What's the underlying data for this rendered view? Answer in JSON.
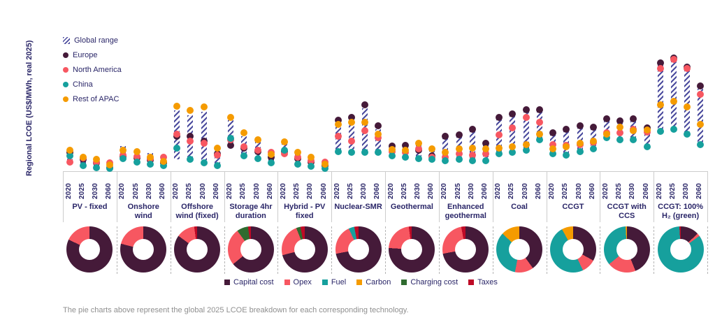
{
  "y_axis_title": "Regional LCOE (US$/MWh, real 2025)",
  "caption": "The pie charts above represent the global 2025 LCOE breakdown for each corresponding technology.",
  "legend": {
    "global_range_label": "Global range"
  },
  "colors": {
    "text_navy": "#2A2668",
    "hatch": "#4C4C9E",
    "grid": "#CCCCCC",
    "caption_gray": "#8F8F8F"
  },
  "cost_legend": [
    {
      "key": "capital",
      "label": "Capital cost",
      "color": "#451A39"
    },
    {
      "key": "opex",
      "label": "Opex",
      "color": "#F75761"
    },
    {
      "key": "fuel",
      "label": "Fuel",
      "color": "#16A09D"
    },
    {
      "key": "carbon",
      "label": "Carbon",
      "color": "#F59B00"
    },
    {
      "key": "charging",
      "label": "Charging cost",
      "color": "#2F6B2F"
    },
    {
      "key": "taxes",
      "label": "Taxes",
      "color": "#BE0A26"
    }
  ],
  "chart_data": {
    "type": "scatter",
    "ylabel": "Regional LCOE (US$/MWh, real 2025)",
    "ylim": [
      0,
      190
    ],
    "axis_note": "y axis unlabeled; values are relative units read from pixel positions",
    "x_years": [
      "2020",
      "2025",
      "2030",
      "2060"
    ],
    "regions": [
      {
        "key": "europe",
        "label": "Europe",
        "color": "#451A39"
      },
      {
        "key": "north_america",
        "label": "North America",
        "color": "#F75761"
      },
      {
        "key": "china",
        "label": "China",
        "color": "#16A09D"
      },
      {
        "key": "rest_of_apac",
        "label": "Rest of APAC",
        "color": "#F59B00"
      }
    ],
    "technologies": [
      {
        "label": "PV - fixed",
        "range": [
          [
            12,
            32
          ],
          [
            8,
            21
          ],
          [
            5,
            18
          ],
          [
            3,
            13
          ]
        ],
        "points": {
          "europe": [
            27,
            17,
            12,
            5
          ],
          "north_america": [
            13,
            19,
            13,
            12
          ],
          "china": [
            22,
            8,
            5,
            4
          ],
          "rest_of_apac": [
            30,
            20,
            17,
            9
          ]
        },
        "pie": [
          [
            "capital",
            82
          ],
          [
            "opex",
            18
          ]
        ]
      },
      {
        "label": "Onshore wind",
        "range": [
          [
            15,
            36
          ],
          [
            12,
            30
          ],
          [
            10,
            26
          ],
          [
            8,
            22
          ]
        ],
        "points": {
          "europe": [
            21,
            19,
            16,
            12
          ],
          "north_america": [
            23,
            21,
            18,
            20
          ],
          "china": [
            18,
            13,
            10,
            8
          ],
          "rest_of_apac": [
            30,
            28,
            20,
            14
          ]
        },
        "pie": [
          [
            "capital",
            79
          ],
          [
            "opex",
            21
          ]
        ]
      },
      {
        "label": "Offshore wind (fixed)",
        "range": [
          [
            17,
            87
          ],
          [
            17,
            80
          ],
          [
            12,
            85
          ],
          [
            8,
            28
          ]
        ],
        "points": {
          "europe": [
            50,
            50,
            43,
            25
          ],
          "north_america": [
            53,
            43,
            40,
            23
          ],
          "china": [
            33,
            17,
            12,
            8
          ],
          "rest_of_apac": [
            93,
            87,
            92,
            33
          ]
        },
        "pie": [
          [
            "capital",
            85
          ],
          [
            "opex",
            13
          ],
          [
            "taxes",
            2
          ]
        ]
      },
      {
        "label": "Storage 4hr duration",
        "range": [
          [
            37,
            73
          ],
          [
            22,
            50
          ],
          [
            18,
            42
          ],
          [
            12,
            25
          ]
        ],
        "points": {
          "europe": [
            37,
            33,
            28,
            20
          ],
          "north_america": [
            45,
            35,
            30,
            27
          ],
          "china": [
            47,
            22,
            18,
            12
          ],
          "rest_of_apac": [
            77,
            55,
            45,
            24
          ]
        },
        "pie": [
          [
            "capital",
            64
          ],
          [
            "opex",
            26
          ],
          [
            "charging",
            8
          ],
          [
            "taxes",
            2
          ]
        ]
      },
      {
        "label": "Hybrid - PV fixed",
        "range": [
          [
            25,
            40
          ],
          [
            10,
            25
          ],
          [
            7,
            20
          ],
          [
            4,
            12
          ]
        ],
        "points": {
          "europe": [
            28,
            18,
            13,
            8
          ],
          "north_america": [
            25,
            20,
            15,
            13
          ],
          "china": [
            30,
            10,
            7,
            4
          ],
          "rest_of_apac": [
            42,
            27,
            20,
            10
          ]
        },
        "pie": [
          [
            "capital",
            71
          ],
          [
            "opex",
            23
          ],
          [
            "charging",
            3
          ],
          [
            "taxes",
            3
          ]
        ]
      },
      {
        "label": "Nuclear-SMR",
        "range": [
          [
            28,
            70
          ],
          [
            27,
            72
          ],
          [
            27,
            90
          ],
          [
            27,
            60
          ]
        ],
        "points": {
          "europe": [
            73,
            77,
            95,
            65
          ],
          "north_america": [
            50,
            43,
            58,
            48
          ],
          "china": [
            28,
            27,
            27,
            27
          ],
          "rest_of_apac": [
            67,
            70,
            70,
            53
          ]
        },
        "pie": [
          [
            "capital",
            72
          ],
          [
            "opex",
            21
          ],
          [
            "fuel",
            4
          ],
          [
            "taxes",
            3
          ]
        ]
      },
      {
        "label": "Geothermal",
        "range": [
          [
            22,
            34
          ],
          [
            20,
            35
          ],
          [
            18,
            38
          ],
          [
            16,
            30
          ]
        ],
        "points": {
          "europe": [
            36,
            37,
            30,
            22
          ],
          "north_america": [
            28,
            27,
            32,
            20
          ],
          "china": [
            22,
            20,
            18,
            17
          ],
          "rest_of_apac": [
            31,
            30,
            40,
            32
          ]
        },
        "pie": [
          [
            "capital",
            76
          ],
          [
            "opex",
            22
          ],
          [
            "taxes",
            2
          ]
        ]
      },
      {
        "label": "Enhanced geothermal",
        "range": [
          [
            15,
            48
          ],
          [
            17,
            50
          ],
          [
            15,
            58
          ],
          [
            15,
            38
          ]
        ],
        "points": {
          "europe": [
            50,
            52,
            60,
            40
          ],
          "north_america": [
            20,
            25,
            23,
            25
          ],
          "china": [
            15,
            17,
            15,
            15
          ],
          "rest_of_apac": [
            27,
            32,
            33,
            32
          ]
        },
        "pie": [
          [
            "capital",
            72
          ],
          [
            "opex",
            25
          ],
          [
            "taxes",
            3
          ]
        ]
      },
      {
        "label": "Coal",
        "range": [
          [
            25,
            75
          ],
          [
            27,
            80
          ],
          [
            30,
            86
          ],
          [
            45,
            86
          ]
        ],
        "points": {
          "europe": [
            77,
            82,
            88,
            88
          ],
          "north_america": [
            52,
            62,
            77,
            70
          ],
          "china": [
            25,
            27,
            30,
            45
          ],
          "rest_of_apac": [
            33,
            35,
            38,
            53
          ]
        },
        "pie": [
          [
            "capital",
            40
          ],
          [
            "opex",
            13
          ],
          [
            "fuel",
            34
          ],
          [
            "carbon",
            13
          ]
        ]
      },
      {
        "label": "CCGT",
        "range": [
          [
            25,
            53
          ],
          [
            23,
            58
          ],
          [
            28,
            63
          ],
          [
            32,
            61
          ]
        ],
        "points": {
          "europe": [
            55,
            60,
            65,
            63
          ],
          "north_america": [
            38,
            37,
            38,
            41
          ],
          "china": [
            25,
            23,
            28,
            32
          ],
          "rest_of_apac": [
            32,
            35,
            40,
            43
          ]
        },
        "pie": [
          [
            "capital",
            33
          ],
          [
            "opex",
            10
          ],
          [
            "fuel",
            49
          ],
          [
            "carbon",
            8
          ]
        ]
      },
      {
        "label": "CCGT with CCS",
        "range": [
          [
            48,
            72
          ],
          [
            45,
            70
          ],
          [
            45,
            72
          ],
          [
            35,
            60
          ]
        ],
        "points": {
          "europe": [
            75,
            72,
            75,
            62
          ],
          "north_america": [
            55,
            55,
            60,
            56
          ],
          "china": [
            48,
            45,
            45,
            35
          ],
          "rest_of_apac": [
            53,
            63,
            58,
            59
          ]
        },
        "pie": [
          [
            "capital",
            44
          ],
          [
            "opex",
            20
          ],
          [
            "fuel",
            35
          ],
          [
            "carbon",
            1
          ]
        ]
      },
      {
        "label": "CCGT: 100% H₂ (green)",
        "range": [
          [
            57,
            152
          ],
          [
            60,
            158
          ],
          [
            53,
            145
          ],
          [
            38,
            118
          ]
        ],
        "points": {
          "europe": [
            155,
            162,
            149,
            122
          ],
          "north_america": [
            147,
            160,
            147,
            110
          ],
          "china": [
            57,
            60,
            53,
            38
          ],
          "rest_of_apac": [
            95,
            100,
            92,
            67
          ]
        },
        "pie": [
          [
            "capital",
            13
          ],
          [
            "opex",
            2
          ],
          [
            "fuel",
            84
          ],
          [
            "taxes",
            1
          ]
        ]
      }
    ]
  }
}
